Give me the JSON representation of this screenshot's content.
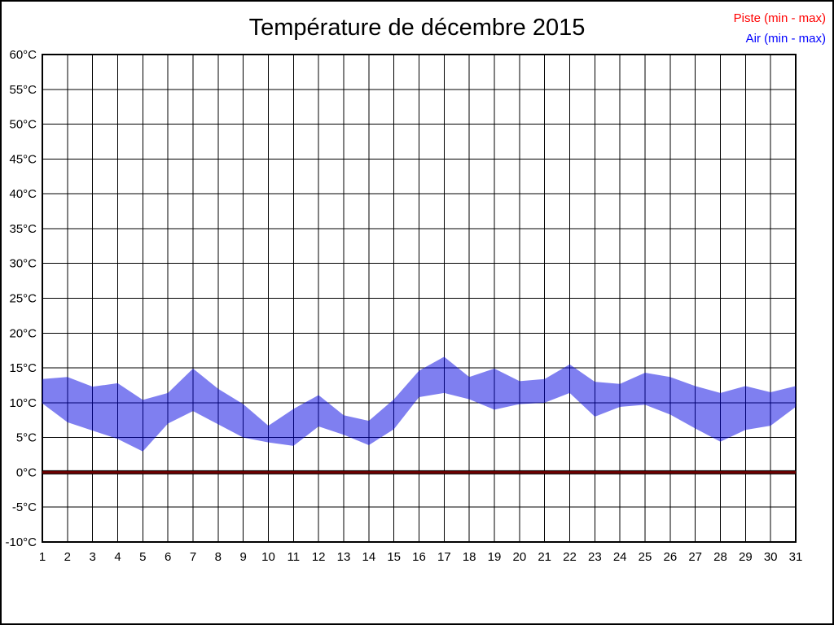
{
  "chart_data": {
    "type": "area",
    "title": "Température de décembre 2015",
    "xlabel": "",
    "ylabel": "",
    "x": [
      1,
      2,
      3,
      4,
      5,
      6,
      7,
      8,
      9,
      10,
      11,
      12,
      13,
      14,
      15,
      16,
      17,
      18,
      19,
      20,
      21,
      22,
      23,
      24,
      25,
      26,
      27,
      28,
      29,
      30,
      31
    ],
    "ylim": [
      -10,
      60
    ],
    "ytick_step": 5,
    "ytick_suffix": "°C",
    "grid": "on",
    "legend_position": "top-right",
    "series": [
      {
        "name": "Piste (min - max)",
        "legend_color": "#ff0000",
        "line_color": "#6e0000",
        "line_edge_color": "#000000",
        "min": [
          0,
          0,
          0,
          0,
          0,
          0,
          0,
          0,
          0,
          0,
          0,
          0,
          0,
          0,
          0,
          0,
          0,
          0,
          0,
          0,
          0,
          0,
          0,
          0,
          0,
          0,
          0,
          0,
          0,
          0,
          0
        ],
        "max": [
          0,
          0,
          0,
          0,
          0,
          0,
          0,
          0,
          0,
          0,
          0,
          0,
          0,
          0,
          0,
          0,
          0,
          0,
          0,
          0,
          0,
          0,
          0,
          0,
          0,
          0,
          0,
          0,
          0,
          0,
          0
        ]
      },
      {
        "name": "Air (min - max)",
        "legend_color": "#0000ff",
        "fill": "rgba(0,0,225,0.5)",
        "min": [
          9.9,
          7.2,
          6.0,
          4.8,
          3.0,
          7.0,
          8.8,
          6.9,
          5.0,
          4.3,
          3.8,
          6.6,
          5.4,
          3.9,
          6.2,
          10.8,
          11.4,
          10.5,
          9.0,
          9.8,
          10.0,
          11.4,
          8.0,
          9.4,
          9.7,
          8.3,
          6.3,
          4.4,
          6.1,
          6.7,
          9.4
        ],
        "max": [
          13.4,
          13.7,
          12.3,
          12.8,
          10.4,
          11.4,
          14.9,
          12.0,
          9.8,
          6.7,
          9.1,
          11.1,
          8.2,
          7.4,
          10.5,
          14.6,
          16.6,
          13.7,
          14.9,
          13.1,
          13.4,
          15.5,
          13.0,
          12.7,
          14.3,
          13.7,
          12.4,
          11.4,
          12.4,
          11.5,
          12.4
        ]
      }
    ]
  }
}
